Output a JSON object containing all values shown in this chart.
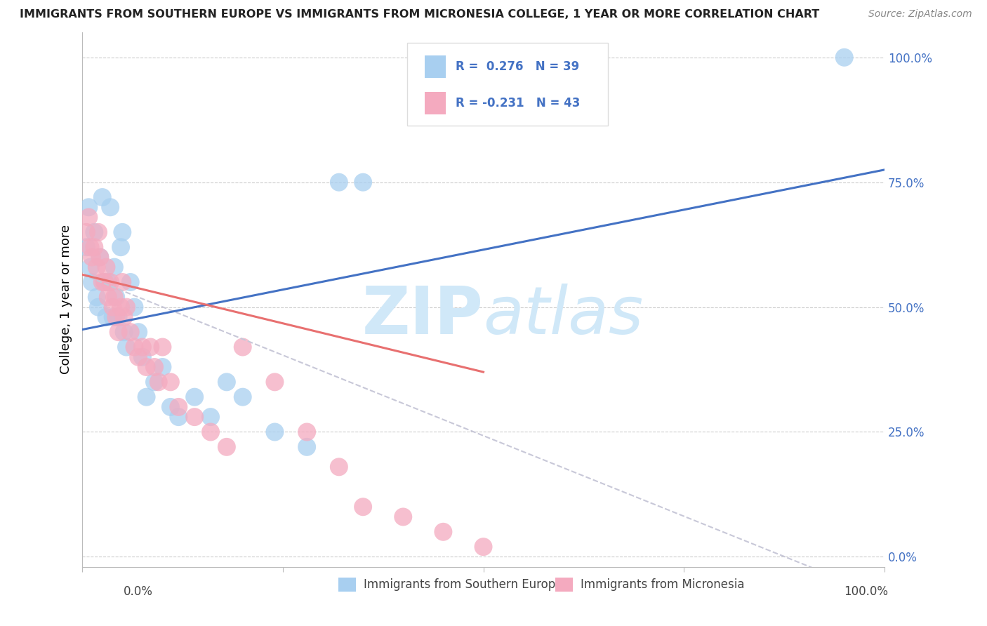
{
  "title": "IMMIGRANTS FROM SOUTHERN EUROPE VS IMMIGRANTS FROM MICRONESIA COLLEGE, 1 YEAR OR MORE CORRELATION CHART",
  "source": "Source: ZipAtlas.com",
  "ylabel": "College, 1 year or more",
  "y_tick_labels": [
    "0.0%",
    "25.0%",
    "50.0%",
    "75.0%",
    "100.0%"
  ],
  "y_tick_values": [
    0.0,
    0.25,
    0.5,
    0.75,
    1.0
  ],
  "blue_color": "#A8CFF0",
  "pink_color": "#F4AABF",
  "blue_line_color": "#4472C4",
  "pink_line_color": "#E87070",
  "pink_dash_color": "#C8C8D8",
  "watermark_color": "#D0E8F8",
  "blue_scatter_x": [
    0.005,
    0.008,
    0.01,
    0.012,
    0.015,
    0.018,
    0.02,
    0.022,
    0.025,
    0.028,
    0.03,
    0.032,
    0.035,
    0.038,
    0.04,
    0.042,
    0.045,
    0.048,
    0.05,
    0.052,
    0.055,
    0.06,
    0.065,
    0.07,
    0.075,
    0.08,
    0.09,
    0.1,
    0.11,
    0.12,
    0.14,
    0.16,
    0.18,
    0.2,
    0.24,
    0.28,
    0.32,
    0.35,
    0.95
  ],
  "blue_scatter_y": [
    0.62,
    0.7,
    0.58,
    0.55,
    0.65,
    0.52,
    0.5,
    0.6,
    0.72,
    0.55,
    0.48,
    0.55,
    0.7,
    0.48,
    0.58,
    0.52,
    0.48,
    0.62,
    0.65,
    0.45,
    0.42,
    0.55,
    0.5,
    0.45,
    0.4,
    0.32,
    0.35,
    0.38,
    0.3,
    0.28,
    0.32,
    0.28,
    0.35,
    0.32,
    0.25,
    0.22,
    0.75,
    0.75,
    1.0
  ],
  "pink_scatter_x": [
    0.005,
    0.008,
    0.01,
    0.012,
    0.015,
    0.018,
    0.02,
    0.022,
    0.025,
    0.028,
    0.03,
    0.032,
    0.035,
    0.038,
    0.04,
    0.042,
    0.045,
    0.048,
    0.05,
    0.052,
    0.055,
    0.06,
    0.065,
    0.07,
    0.075,
    0.08,
    0.085,
    0.09,
    0.095,
    0.1,
    0.11,
    0.12,
    0.14,
    0.16,
    0.18,
    0.2,
    0.24,
    0.28,
    0.32,
    0.35,
    0.4,
    0.45,
    0.5
  ],
  "pink_scatter_y": [
    0.65,
    0.68,
    0.62,
    0.6,
    0.62,
    0.58,
    0.65,
    0.6,
    0.55,
    0.55,
    0.58,
    0.52,
    0.55,
    0.5,
    0.52,
    0.48,
    0.45,
    0.5,
    0.55,
    0.48,
    0.5,
    0.45,
    0.42,
    0.4,
    0.42,
    0.38,
    0.42,
    0.38,
    0.35,
    0.42,
    0.35,
    0.3,
    0.28,
    0.25,
    0.22,
    0.42,
    0.35,
    0.25,
    0.18,
    0.1,
    0.08,
    0.05,
    0.02
  ],
  "xlim": [
    0.0,
    1.0
  ],
  "ylim": [
    -0.02,
    1.05
  ]
}
